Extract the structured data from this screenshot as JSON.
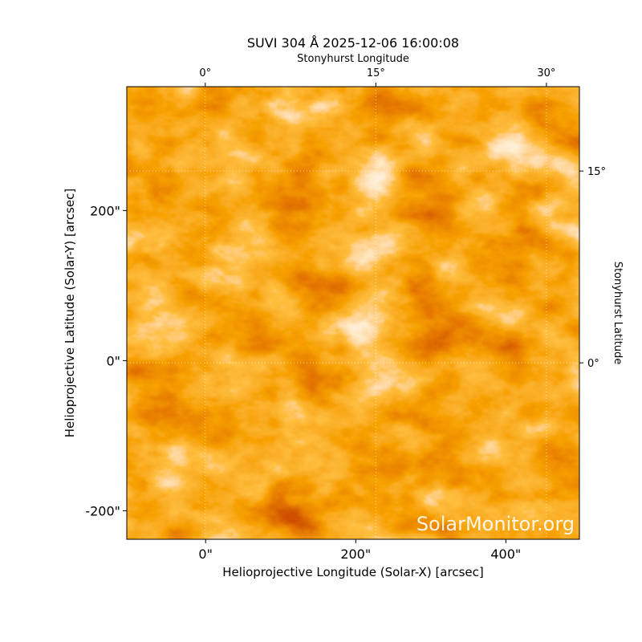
{
  "chart_data": {
    "type": "image",
    "title": "SUVI 304 Å 2025-12-06 16:00:08",
    "xlabel": "Helioprojective Longitude (Solar-X) [arcsec]",
    "ylabel": "Helioprojective Latitude (Solar-Y) [arcsec]",
    "x2label": "Stonyhurst Longitude",
    "y2label": "Stonyhurst Latitude",
    "watermark": "SolarMonitor.org",
    "xlim": [
      -105,
      498
    ],
    "ylim": [
      -238,
      365
    ],
    "xticks": [
      {
        "value": 0,
        "label": "0\""
      },
      {
        "value": 200,
        "label": "200\""
      },
      {
        "value": 400,
        "label": "400\""
      }
    ],
    "yticks": [
      {
        "value": -200,
        "label": "-200\""
      },
      {
        "value": 0,
        "label": "0\""
      },
      {
        "value": 200,
        "label": "200\""
      }
    ],
    "x2lim": [
      -6.9,
      32.9
    ],
    "y2lim": [
      -13.8,
      21.6
    ],
    "x2ticks": [
      {
        "value": 0,
        "label": "0°"
      },
      {
        "value": 15,
        "label": "15°"
      },
      {
        "value": 30,
        "label": "30°"
      }
    ],
    "y2ticks": [
      {
        "value": 0,
        "label": "0°"
      },
      {
        "value": 15,
        "label": "15°"
      }
    ],
    "grid": true
  }
}
